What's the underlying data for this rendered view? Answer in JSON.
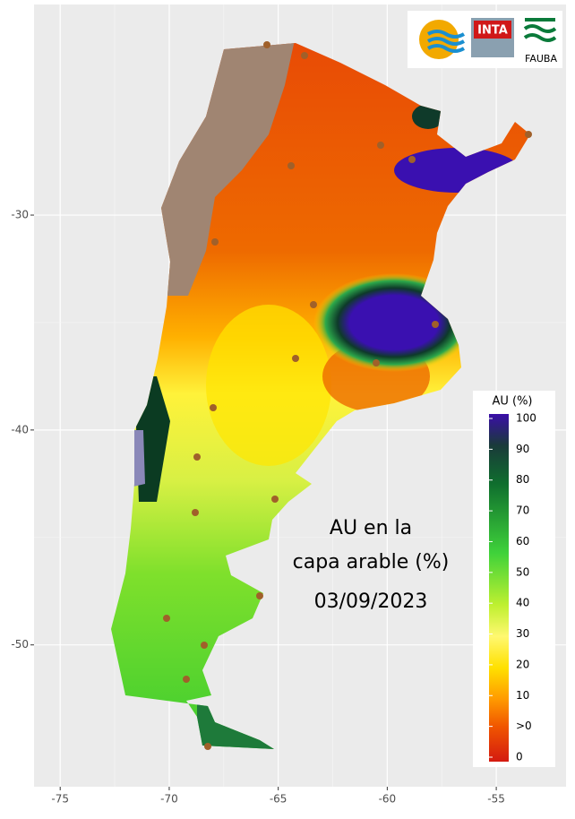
{
  "map": {
    "xlim": [
      -76.2,
      -51.8
    ],
    "ylim": [
      -56.6,
      -20.2
    ],
    "xticks": [
      -75,
      -70,
      -65,
      -60,
      -55
    ],
    "yticks": [
      -30,
      -40,
      -50
    ],
    "annotation": [
      "AU en la",
      "capa arable (%)",
      "03/09/2023"
    ],
    "legend": {
      "title": "AU (%)",
      "labels": [
        "100",
        "90",
        "80",
        "70",
        "60",
        "50",
        "40",
        "30",
        "20",
        "10",
        ">0",
        "0"
      ]
    }
  },
  "logos": {
    "inta": "INTA",
    "fauba": "FAUBA"
  }
}
